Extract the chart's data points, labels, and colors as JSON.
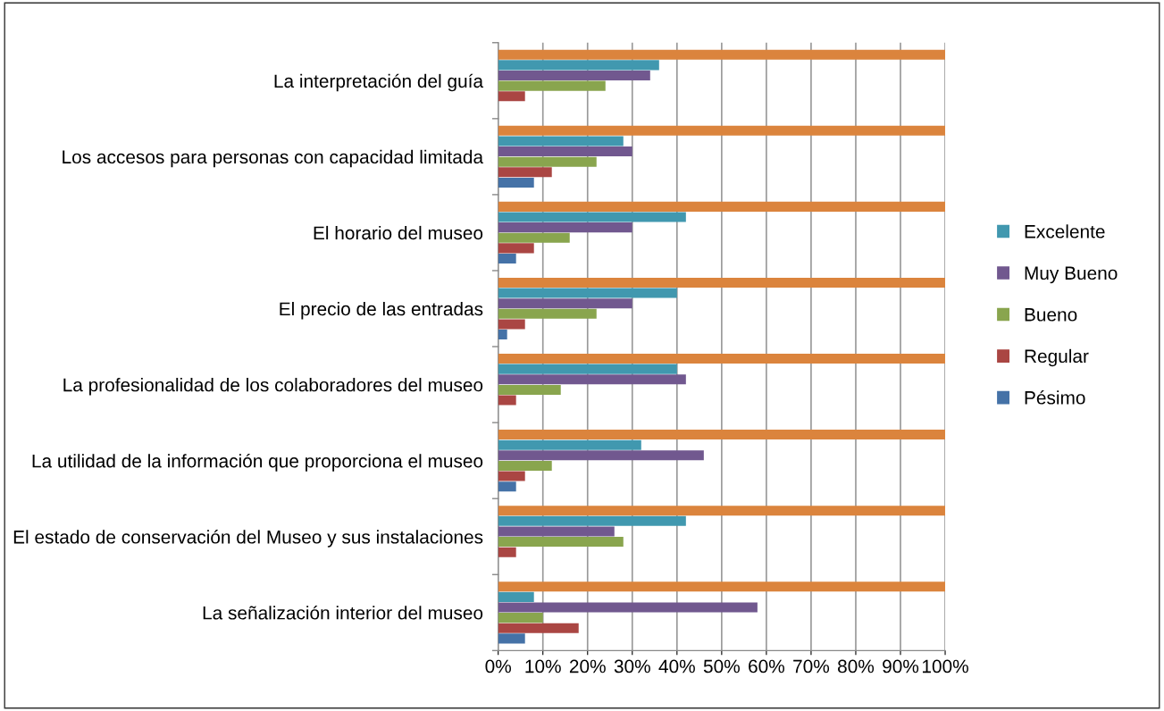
{
  "chart_data": {
    "type": "bar",
    "orientation": "horizontal",
    "categories": [
      "La interpretación del guía",
      "Los accesos para personas con capacidad limitada",
      "El horario del museo",
      "El precio de las entradas",
      "La profesionalidad de los colaboradores del museo",
      "La utilidad de la información que proporciona el museo",
      "El estado de conservación del Museo y sus instalaciones",
      "La señalización interior del museo"
    ],
    "series": [
      {
        "name": "Pésimo",
        "color": "#4572a7",
        "values": [
          0,
          8,
          4,
          2,
          0,
          4,
          0,
          6
        ]
      },
      {
        "name": "Regular",
        "color": "#aa4643",
        "values": [
          6,
          12,
          8,
          6,
          4,
          6,
          4,
          18
        ]
      },
      {
        "name": "Bueno",
        "color": "#89a54e",
        "values": [
          24,
          22,
          16,
          22,
          14,
          12,
          28,
          10
        ]
      },
      {
        "name": "Muy Bueno",
        "color": "#71588f",
        "values": [
          34,
          30,
          30,
          30,
          42,
          46,
          26,
          58
        ]
      },
      {
        "name": "Excelente",
        "color": "#4198af",
        "values": [
          36,
          28,
          42,
          40,
          40,
          32,
          42,
          8
        ]
      },
      {
        "color": "#db843d",
        "values": [
          100,
          100,
          100,
          100,
          100,
          100,
          100,
          100
        ]
      }
    ],
    "xlim": [
      0,
      100
    ],
    "xticks": [
      {
        "value": 0,
        "label": "0%"
      },
      {
        "value": 10,
        "label": "10%"
      },
      {
        "value": 20,
        "label": "20%"
      },
      {
        "value": 30,
        "label": "30%"
      },
      {
        "value": 40,
        "label": "40%"
      },
      {
        "value": 50,
        "label": "50%"
      },
      {
        "value": 60,
        "label": "60%"
      },
      {
        "value": 70,
        "label": "70%"
      },
      {
        "value": 80,
        "label": "80%"
      },
      {
        "value": 90,
        "label": "90%"
      },
      {
        "value": 100,
        "label": "100%"
      }
    ],
    "grid": "x",
    "legend": "right"
  }
}
